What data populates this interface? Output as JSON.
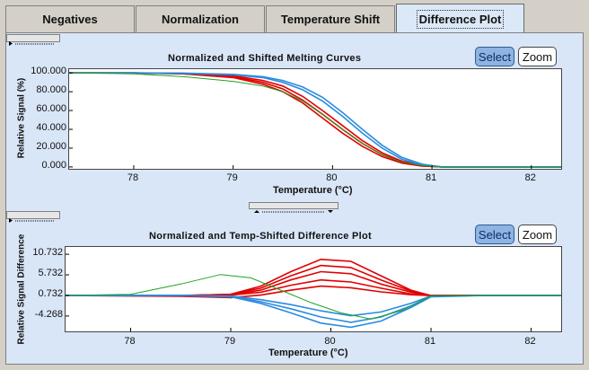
{
  "tabs": [
    {
      "label": "Negatives"
    },
    {
      "label": "Normalization"
    },
    {
      "label": "Temperature Shift"
    },
    {
      "label": "Difference Plot",
      "active": true
    }
  ],
  "panels": {
    "melting": {
      "title": "Normalized and Shifted Melting Curves",
      "select_label": "Select",
      "zoom_label": "Zoom"
    },
    "difference": {
      "title": "Normalized and Temp-Shifted Difference Plot",
      "select_label": "Select",
      "zoom_label": "Zoom"
    }
  },
  "chart_data": [
    {
      "type": "line",
      "title": "Normalized and Shifted Melting Curves",
      "xlabel": "Temperature (°C)",
      "ylabel": "Relative Signal (%)",
      "x_tick_labels": [
        "78",
        "79",
        "80",
        "81",
        "82"
      ],
      "y_tick_labels": [
        "100.000",
        "80.000",
        "60.000",
        "40.000",
        "20.000",
        "0.000"
      ],
      "xlim": [
        77.35,
        82.3
      ],
      "ylim": [
        -2,
        104
      ],
      "grid": false,
      "colors": {
        "red": "#e00000",
        "blue": "#2a8be0",
        "green": "#1fa31f"
      },
      "series": [
        {
          "color": "red",
          "x": [
            77.35,
            78.0,
            78.5,
            79.0,
            79.3,
            79.5,
            79.7,
            79.9,
            80.1,
            80.3,
            80.5,
            80.7,
            80.9,
            81.1,
            81.5,
            82.3
          ],
          "values": [
            100,
            100,
            99,
            95,
            88,
            80,
            68,
            52,
            36,
            22,
            11,
            4,
            1,
            0,
            0,
            0
          ]
        },
        {
          "color": "red",
          "x": [
            77.35,
            78.0,
            78.5,
            79.0,
            79.3,
            79.5,
            79.7,
            79.9,
            80.1,
            80.3,
            80.5,
            80.7,
            80.9,
            81.1,
            81.5,
            82.3
          ],
          "values": [
            100,
            100,
            99,
            96,
            90,
            83,
            71,
            56,
            40,
            25,
            13,
            5,
            1.5,
            0,
            0,
            0
          ]
        },
        {
          "color": "red",
          "x": [
            77.35,
            78.0,
            78.5,
            79.0,
            79.3,
            79.5,
            79.7,
            79.9,
            80.1,
            80.3,
            80.5,
            80.7,
            80.9,
            81.1,
            81.5,
            82.3
          ],
          "values": [
            100,
            100,
            99.5,
            97,
            92,
            86,
            75,
            60,
            44,
            28,
            15,
            6,
            2,
            0,
            0,
            0
          ]
        },
        {
          "color": "blue",
          "x": [
            77.35,
            78.0,
            78.5,
            79.0,
            79.3,
            79.5,
            79.7,
            79.9,
            80.1,
            80.3,
            80.5,
            80.7,
            80.9,
            81.1,
            81.5,
            82.3
          ],
          "values": [
            100,
            100,
            99.5,
            98,
            95,
            90,
            82,
            70,
            54,
            36,
            20,
            8,
            2,
            0,
            0,
            0
          ]
        },
        {
          "color": "blue",
          "x": [
            77.35,
            78.0,
            78.5,
            79.0,
            79.3,
            79.5,
            79.7,
            79.9,
            80.1,
            80.3,
            80.5,
            80.7,
            80.9,
            81.1,
            81.5,
            82.3
          ],
          "values": [
            100,
            100,
            99.8,
            98.5,
            96,
            92,
            85,
            74,
            58,
            40,
            23,
            10,
            3,
            0,
            0,
            0
          ]
        },
        {
          "color": "green",
          "x": [
            77.35,
            78.0,
            78.5,
            79.0,
            79.3,
            79.5,
            79.7,
            79.9,
            80.1,
            80.3,
            80.5,
            80.7,
            80.9,
            81.1,
            81.5,
            82.3
          ],
          "values": [
            100,
            99,
            96,
            91,
            86,
            80,
            70,
            56,
            40,
            25,
            13,
            5,
            1.5,
            0,
            0,
            0
          ]
        }
      ]
    },
    {
      "type": "line",
      "title": "Normalized and Temp-Shifted Difference Plot",
      "xlabel": "Temperature (°C)",
      "ylabel": "Relative Signal Difference",
      "x_tick_labels": [
        "78",
        "79",
        "80",
        "81",
        "82"
      ],
      "y_tick_labels": [
        "10.732",
        "5.732",
        "0.732",
        "-4.268"
      ],
      "xlim": [
        77.35,
        82.3
      ],
      "ylim": [
        -8,
        12.5
      ],
      "grid": false,
      "colors": {
        "red": "#e00000",
        "blue": "#2a8be0",
        "green": "#1fa31f"
      },
      "series": [
        {
          "color": "red",
          "x": [
            77.35,
            78.5,
            79.0,
            79.3,
            79.6,
            79.9,
            80.2,
            80.5,
            80.8,
            81.0,
            81.5,
            82.3
          ],
          "values": [
            0.7,
            0.7,
            1.0,
            3.0,
            6.5,
            9.5,
            9.0,
            5.5,
            2.0,
            0.7,
            0.7,
            0.7
          ]
        },
        {
          "color": "red",
          "x": [
            77.35,
            78.5,
            79.0,
            79.3,
            79.6,
            79.9,
            80.2,
            80.5,
            80.8,
            81.0,
            81.5,
            82.3
          ],
          "values": [
            0.7,
            0.7,
            1.0,
            2.5,
            5.5,
            8.0,
            7.5,
            4.5,
            1.8,
            0.7,
            0.7,
            0.7
          ]
        },
        {
          "color": "red",
          "x": [
            77.35,
            78.5,
            79.0,
            79.3,
            79.6,
            79.9,
            80.2,
            80.5,
            80.8,
            81.0,
            81.5,
            82.3
          ],
          "values": [
            0.7,
            0.7,
            0.9,
            2.0,
            4.5,
            6.5,
            6.0,
            3.5,
            1.5,
            0.7,
            0.7,
            0.7
          ]
        },
        {
          "color": "red",
          "x": [
            77.35,
            78.5,
            79.0,
            79.3,
            79.6,
            79.9,
            80.2,
            80.5,
            80.8,
            81.0,
            81.5,
            82.3
          ],
          "values": [
            0.7,
            0.7,
            0.8,
            1.5,
            3.2,
            4.5,
            4.0,
            2.5,
            1.1,
            0.7,
            0.7,
            0.7
          ]
        },
        {
          "color": "red",
          "x": [
            77.35,
            78.5,
            79.0,
            79.3,
            79.6,
            79.9,
            80.2,
            80.5,
            80.8,
            81.0,
            81.5,
            82.3
          ],
          "values": [
            0.7,
            0.5,
            0.2,
            0.8,
            2.0,
            3.0,
            2.6,
            1.6,
            0.9,
            0.7,
            0.7,
            0.7
          ]
        },
        {
          "color": "blue",
          "x": [
            77.35,
            78.5,
            79.0,
            79.3,
            79.6,
            79.9,
            80.2,
            80.5,
            80.8,
            81.0,
            81.5,
            82.3
          ],
          "values": [
            0.7,
            0.7,
            0.6,
            -0.3,
            -1.5,
            -3.0,
            -4.2,
            -3.3,
            -1.2,
            0.6,
            0.7,
            0.7
          ]
        },
        {
          "color": "blue",
          "x": [
            77.35,
            78.5,
            79.0,
            79.3,
            79.6,
            79.9,
            80.2,
            80.5,
            80.8,
            81.0,
            81.5,
            82.3
          ],
          "values": [
            0.7,
            0.7,
            0.5,
            -0.8,
            -2.5,
            -4.5,
            -5.8,
            -4.5,
            -1.8,
            0.5,
            0.7,
            0.7
          ]
        },
        {
          "color": "blue",
          "x": [
            77.35,
            78.5,
            79.0,
            79.3,
            79.6,
            79.9,
            80.2,
            80.5,
            80.8,
            81.0,
            81.5,
            82.3
          ],
          "values": [
            0.7,
            0.7,
            0.4,
            -1.2,
            -3.5,
            -6.0,
            -7.0,
            -5.5,
            -2.2,
            0.4,
            0.7,
            0.7
          ]
        },
        {
          "color": "green",
          "x": [
            77.35,
            78.0,
            78.5,
            78.9,
            79.2,
            79.5,
            79.8,
            80.1,
            80.4,
            80.7,
            81.0,
            81.5,
            82.3
          ],
          "values": [
            0.7,
            1.0,
            3.5,
            5.8,
            5.0,
            2.0,
            -1.0,
            -3.5,
            -5.0,
            -3.0,
            0.6,
            0.7,
            0.7
          ]
        }
      ]
    }
  ]
}
